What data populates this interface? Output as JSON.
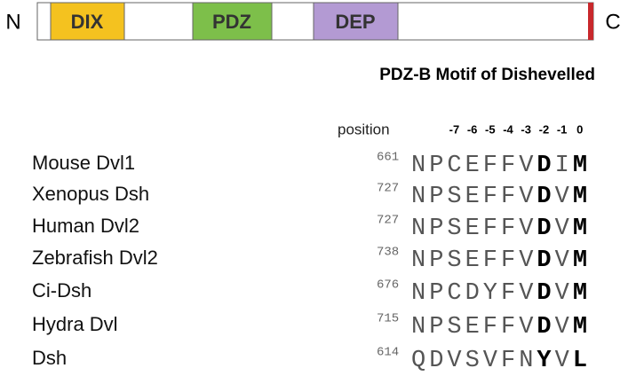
{
  "protein": {
    "n_label": "N",
    "c_label": "C",
    "domains": [
      "DIX",
      "PDZ",
      "DEP"
    ]
  },
  "title": "PDZ-B Motif of Dishevelled",
  "position_label": "position",
  "positions": [
    "-7",
    "-6",
    "-5",
    "-4",
    "-3",
    "-2",
    "-1",
    "0"
  ],
  "rows": [
    {
      "name": "Mouse Dvl1",
      "start": "661",
      "segments": [
        "NPCEFFV",
        "D",
        "I",
        "M"
      ]
    },
    {
      "name": "Xenopus Dsh",
      "start": "727",
      "segments": [
        "NPSEFFV",
        "D",
        "V",
        "M"
      ]
    },
    {
      "name": "Human Dvl2",
      "start": "727",
      "segments": [
        "NPSEFFV",
        "D",
        "V",
        "M"
      ]
    },
    {
      "name": "Zebrafish Dvl2",
      "start": "738",
      "segments": [
        "NPSEFFV",
        "D",
        "V",
        "M"
      ]
    },
    {
      "name": "Ci-Dsh",
      "start": "676",
      "segments": [
        "NPCDYFV",
        "D",
        "V",
        "M"
      ]
    },
    {
      "name": "Hydra Dvl",
      "start": "715",
      "segments": [
        "NPSEFFV",
        "D",
        "V",
        "M"
      ]
    },
    {
      "name": "Dsh",
      "start": "614",
      "segments": [
        "QDVSVFN",
        "Y",
        "V",
        "L"
      ]
    }
  ]
}
